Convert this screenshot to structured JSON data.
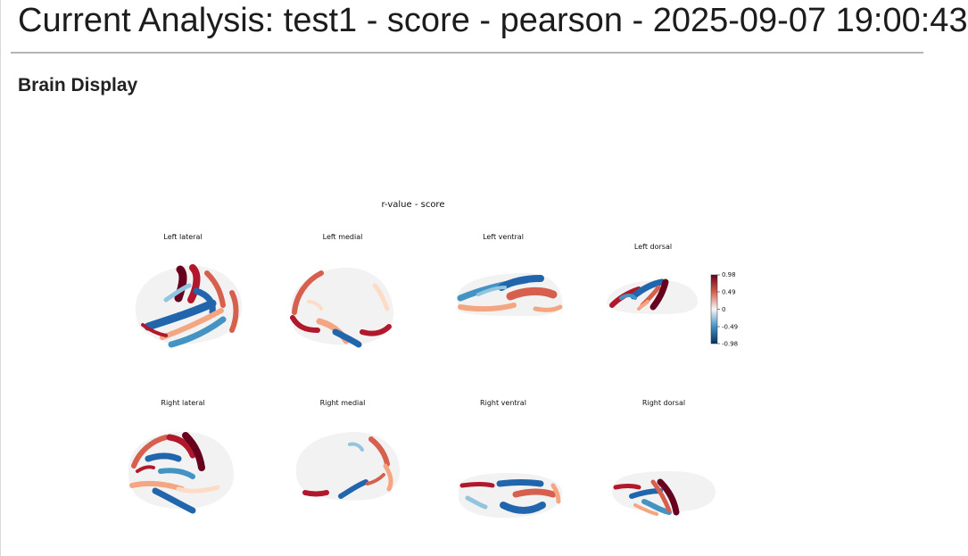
{
  "page": {
    "title": "Current Analysis: test1 - score - pearson - 2025-09-07 19:00:43",
    "section_heading": "Brain Display"
  },
  "figure": {
    "title": "r-value - score",
    "views": [
      "Left lateral",
      "Left medial",
      "Left ventral",
      "Left dorsal",
      "Right lateral",
      "Right medial",
      "Right ventral",
      "Right dorsal"
    ],
    "colorbar": {
      "ticks": [
        "0.98",
        "0.49",
        "0",
        "-0.49",
        "-0.98"
      ],
      "range": [
        -0.98,
        0.98
      ],
      "colormap": "RdBu_r",
      "colors": {
        "max": "#67001f",
        "high": "#d6604d",
        "mid": "#f7f7f7",
        "low": "#4393c3",
        "min": "#053061"
      }
    }
  }
}
